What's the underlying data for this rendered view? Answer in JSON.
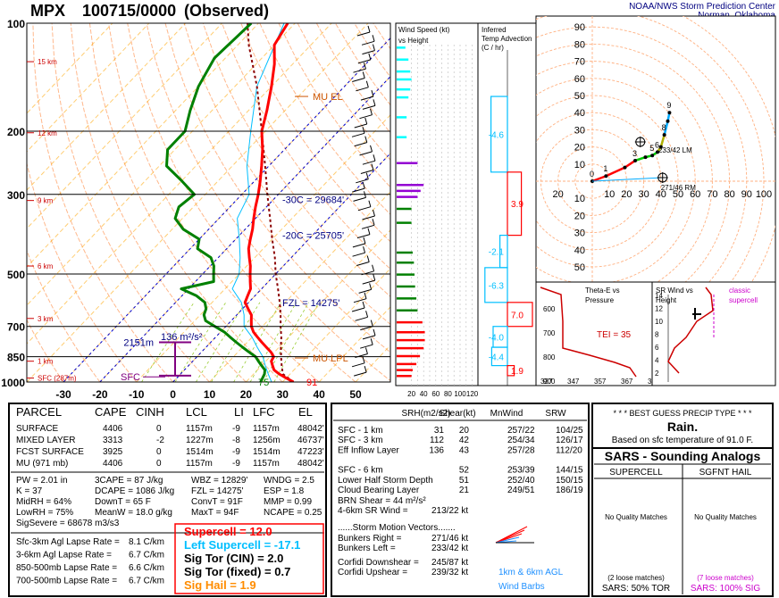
{
  "header": {
    "station": "MPX",
    "time": "100715/0000",
    "status": "(Observed)",
    "org_line1": "NOAA/NWS Storm Prediction Center",
    "org_line2": "Norman, Oklahoma"
  },
  "colors": {
    "temp": "#ff0000",
    "dewpoint": "#008000",
    "parcel": "#8b0000",
    "wetbulb": "#00bfff",
    "isotherm": "#ffa500",
    "mixratio": "#9acd32",
    "dryadiabat": "#ffb080",
    "navy": "#000080",
    "effective": "#800080",
    "cyan": "#00bfff",
    "hodo_axis": "#ffb080"
  },
  "chart_data": [
    {
      "type": "line",
      "title": "Skew-T",
      "pressure_labels": [
        "100",
        "200",
        "300",
        "500",
        "700",
        "850",
        "1000"
      ],
      "pressure_levels": [
        100,
        200,
        300,
        500,
        700,
        850,
        1000
      ],
      "temp_ticks": [
        "-30",
        "-20",
        "-10",
        "0",
        "10",
        "20",
        "30",
        "40",
        "50"
      ],
      "height_labels": [
        {
          "p": 128,
          "label": "15 km"
        },
        {
          "p": 202,
          "label": "12 km"
        },
        {
          "p": 312,
          "label": "9 km"
        },
        {
          "p": 475,
          "label": "6 km"
        },
        {
          "p": 665,
          "label": "3 km"
        },
        {
          "p": 875,
          "label": "1 km"
        },
        {
          "p": 975,
          "label": "SFC (287m)"
        }
      ],
      "annotations": {
        "mu_el": "MU EL",
        "mu_lpl": "MU LPL",
        "isotherm_m30": "-30C = 29684'",
        "isotherm_m20": "-20C = 25705'",
        "fzl": "FZL = 14275'",
        "effective_depth": "2151m",
        "effective_srh": "136 m²/s²",
        "sfc": "SFC",
        "sfc_temp": "91",
        "sfc_dewpoint": "75"
      },
      "series": [
        {
          "key": "temperature",
          "points": [
            [
              1000,
              33
            ],
            [
              975,
              30
            ],
            [
              950,
              27
            ],
            [
              925,
              24.5
            ],
            [
              900,
              23
            ],
            [
              875,
              21.5
            ],
            [
              850,
              21
            ],
            [
              825,
              19
            ],
            [
              800,
              16.5
            ],
            [
              775,
              14
            ],
            [
              750,
              11.5
            ],
            [
              725,
              9
            ],
            [
              700,
              7
            ],
            [
              675,
              5.5
            ],
            [
              650,
              4
            ],
            [
              625,
              1.5
            ],
            [
              600,
              -1
            ],
            [
              575,
              -2
            ],
            [
              550,
              -3
            ],
            [
              525,
              -5
            ],
            [
              500,
              -7
            ],
            [
              475,
              -9
            ],
            [
              450,
              -11.5
            ],
            [
              425,
              -14
            ],
            [
              400,
              -16
            ],
            [
              375,
              -18
            ],
            [
              350,
              -20.5
            ],
            [
              325,
              -23
            ],
            [
              300,
              -25.5
            ],
            [
              275,
              -28.5
            ],
            [
              250,
              -32
            ],
            [
              225,
              -36
            ],
            [
              200,
              -41
            ],
            [
              175,
              -45
            ],
            [
              150,
              -50
            ],
            [
              130,
              -55
            ],
            [
              115,
              -60
            ],
            [
              100,
              -62
            ]
          ]
        },
        {
          "key": "dewpoint",
          "points": [
            [
              1000,
              24
            ],
            [
              975,
              23.5
            ],
            [
              950,
              23
            ],
            [
              925,
              22
            ],
            [
              900,
              20
            ],
            [
              875,
              18
            ],
            [
              850,
              16
            ],
            [
              825,
              13
            ],
            [
              800,
              10
            ],
            [
              775,
              7
            ],
            [
              750,
              4
            ],
            [
              725,
              1
            ],
            [
              700,
              -3
            ],
            [
              675,
              -7
            ],
            [
              650,
              -9
            ],
            [
              625,
              -10
            ],
            [
              600,
              -12
            ],
            [
              575,
              -16
            ],
            [
              550,
              -22
            ],
            [
              525,
              -15
            ],
            [
              500,
              -17
            ],
            [
              475,
              -19
            ],
            [
              450,
              -22
            ],
            [
              425,
              -28
            ],
            [
              400,
              -30
            ],
            [
              375,
              -37
            ],
            [
              350,
              -42
            ],
            [
              325,
              -44
            ],
            [
              300,
              -43
            ],
            [
              275,
              -50
            ],
            [
              250,
              -58
            ],
            [
              225,
              -62
            ],
            [
              200,
              -62
            ],
            [
              175,
              -66
            ],
            [
              150,
              -70
            ],
            [
              125,
              -73
            ],
            [
              100,
              -72
            ]
          ]
        },
        {
          "key": "parcel",
          "points": [
            [
              1000,
              33
            ],
            [
              950,
              28
            ],
            [
              900,
              25.5
            ],
            [
              850,
              23
            ],
            [
              800,
              20.5
            ],
            [
              750,
              18
            ],
            [
              700,
              15
            ],
            [
              650,
              12
            ],
            [
              600,
              8.5
            ],
            [
              550,
              4.5
            ],
            [
              500,
              0
            ],
            [
              450,
              -4.5
            ],
            [
              400,
              -10
            ],
            [
              350,
              -16
            ],
            [
              300,
              -23
            ],
            [
              250,
              -31
            ],
            [
              200,
              -41
            ],
            [
              175,
              -47
            ],
            [
              150,
              -54
            ],
            [
              130,
              -61
            ],
            [
              115,
              -67
            ],
            [
              100,
              -73
            ]
          ]
        },
        {
          "key": "wetbulb",
          "points": [
            [
              1000,
              27
            ],
            [
              950,
              24
            ],
            [
              900,
              21
            ],
            [
              850,
              18
            ],
            [
              800,
              14
            ],
            [
              750,
              10
            ],
            [
              700,
              5
            ],
            [
              650,
              2
            ],
            [
              600,
              -2
            ],
            [
              550,
              -8
            ],
            [
              500,
              -10
            ],
            [
              450,
              -14
            ],
            [
              400,
              -19
            ],
            [
              350,
              -25
            ],
            [
              300,
              -28
            ],
            [
              250,
              -36
            ],
            [
              200,
              -44
            ],
            [
              150,
              -54
            ],
            [
              100,
              -63
            ]
          ]
        }
      ],
      "xlim": [
        -30,
        50
      ],
      "ylim": [
        1000,
        100
      ],
      "log_y": true
    },
    {
      "type": "bar",
      "title": "Wind Speed (kt)\nvs Height",
      "x_ticks": [
        "20",
        "40",
        "60",
        "80",
        "100",
        "120"
      ],
      "bars": [
        {
          "h": 0.3,
          "v": 20,
          "c": "red"
        },
        {
          "h": 0.6,
          "v": 22,
          "c": "red"
        },
        {
          "h": 0.9,
          "v": 28,
          "c": "red"
        },
        {
          "h": 1.3,
          "v": 34,
          "c": "red"
        },
        {
          "h": 1.7,
          "v": 40,
          "c": "red"
        },
        {
          "h": 2.1,
          "v": 42,
          "c": "red"
        },
        {
          "h": 2.5,
          "v": 42,
          "c": "red"
        },
        {
          "h": 3.0,
          "v": 38,
          "c": "red"
        },
        {
          "h": 3.6,
          "v": 30,
          "c": "green"
        },
        {
          "h": 4.2,
          "v": 28,
          "c": "green"
        },
        {
          "h": 4.8,
          "v": 26,
          "c": "green"
        },
        {
          "h": 5.4,
          "v": 25,
          "c": "green"
        },
        {
          "h": 6.0,
          "v": 24,
          "c": "green"
        },
        {
          "h": 6.5,
          "v": 22,
          "c": "green"
        },
        {
          "h": 8.0,
          "v": 20,
          "c": "green"
        },
        {
          "h": 8.7,
          "v": 20,
          "c": "green"
        },
        {
          "h": 9.3,
          "v": 30,
          "c": "#9400d3"
        },
        {
          "h": 9.6,
          "v": 35,
          "c": "#9400d3"
        },
        {
          "h": 9.9,
          "v": 40,
          "c": "#9400d3"
        },
        {
          "h": 11.0,
          "v": 30,
          "c": "#9400d3"
        },
        {
          "h": 12.3,
          "v": 12,
          "c": "cyan"
        },
        {
          "h": 13.3,
          "v": 12,
          "c": "cyan"
        },
        {
          "h": 14.3,
          "v": 15,
          "c": "cyan"
        },
        {
          "h": 14.7,
          "v": 18,
          "c": "cyan"
        },
        {
          "h": 15.2,
          "v": 20,
          "c": "cyan"
        },
        {
          "h": 15.6,
          "v": 18,
          "c": "cyan"
        },
        {
          "h": 16.2,
          "v": 15,
          "c": "cyan"
        },
        {
          "h": 16.8,
          "v": 10,
          "c": "cyan"
        }
      ]
    },
    {
      "type": "bar",
      "title": "Inferred\nTemp Advection\n(C / hr)",
      "values": [
        {
          "label": "-4.6",
          "val": -4.6,
          "p_top": 160,
          "p_bot": 260
        },
        {
          "label": "3.9",
          "val": 3.9,
          "p_top": 260,
          "p_bot": 390
        },
        {
          "label": "-2.1",
          "val": -2.1,
          "p_top": 390,
          "p_bot": 480
        },
        {
          "label": "-6.3",
          "val": -6.3,
          "p_top": 480,
          "p_bot": 600
        },
        {
          "label": "7.0",
          "val": 7.0,
          "p_top": 600,
          "p_bot": 700
        },
        {
          "label": "-4.0",
          "val": -4.0,
          "p_top": 700,
          "p_bot": 800
        },
        {
          "label": "-4.4",
          "val": -4.4,
          "p_top": 800,
          "p_bot": 900
        },
        {
          "label": "1.9",
          "val": 1.9,
          "p_top": 900,
          "p_bot": 960
        }
      ]
    },
    {
      "type": "line",
      "title": "Hodograph",
      "ring_labels": [
        "10",
        "20",
        "30",
        "40",
        "50",
        "60",
        "70",
        "80",
        "90"
      ],
      "axis_x_labels": [
        "20",
        "10",
        "20",
        "30",
        "40",
        "50",
        "60",
        "70",
        "80",
        "90",
        "100"
      ],
      "points": [
        [
          0,
          0
        ],
        [
          8,
          3
        ],
        [
          19,
          8
        ],
        [
          25,
          12
        ],
        [
          31,
          14
        ],
        [
          35,
          15
        ],
        [
          38,
          17
        ],
        [
          40,
          20
        ],
        [
          42,
          27
        ],
        [
          44,
          35
        ],
        [
          45,
          40
        ]
      ],
      "labels": [
        "0",
        "1",
        "3",
        "5",
        "6",
        "8",
        "9"
      ],
      "right_mover_label": "271/46 RM",
      "left_mover_label": "233/42 LM"
    }
  ],
  "inset_theta": {
    "title": "Theta-E vs\nPressure",
    "tei": "TEI = 35",
    "y_ticks": [
      "600",
      "700",
      "800",
      "900"
    ],
    "x_ticks": [
      "337",
      "347",
      "357",
      "367",
      "377"
    ]
  },
  "inset_srw": {
    "title": "SR Wind vs\nHeight",
    "classic": "classic\nsupercell",
    "y_ticks": [
      "14",
      "12",
      "10",
      "8",
      "6",
      "4",
      "2"
    ]
  },
  "parcel_table": {
    "headers": [
      "PARCEL",
      "CAPE",
      "CINH",
      "LCL",
      "LI",
      "LFC",
      "EL"
    ],
    "rows": [
      [
        "SURFACE",
        "4406",
        "0",
        "1157m",
        "-9",
        "1157m",
        "48042'"
      ],
      [
        "MIXED LAYER",
        "3313",
        "-2",
        "1227m",
        "-8",
        "1256m",
        "46737'"
      ],
      [
        "FCST SURFACE",
        "3925",
        "0",
        "1514m",
        "-9",
        "1514m",
        "47223'"
      ],
      [
        "MU  (971 mb)",
        "4406",
        "0",
        "1157m",
        "-9",
        "1157m",
        "48042'"
      ]
    ]
  },
  "thermo": {
    "col1": [
      "PW = 2.01 in",
      "K = 37",
      "MidRH = 64%",
      "LowRH = 75%",
      "SigSevere = 68678 m3/s3"
    ],
    "col2": [
      "3CAPE = 87 J/kg",
      "DCAPE = 1086 J/kg",
      "DownT = 65 F",
      "MeanW = 18.0 g/kg"
    ],
    "col3": [
      "WBZ = 12829'",
      "FZL = 14275'",
      "ConvT = 91F",
      "MaxT = 94F"
    ],
    "col4": [
      "WNDG = 2.5",
      "ESP = 1.8",
      "MMP = 0.99",
      "NCAPE = 0.25"
    ]
  },
  "lapse": [
    {
      "label": "Sfc-3km Agl Lapse Rate =",
      "value": "8.1 C/km"
    },
    {
      "label": "3-6km Agl Lapse Rate =",
      "value": "6.7 C/km"
    },
    {
      "label": "850-500mb Lapse Rate =",
      "value": "6.6 C/km"
    },
    {
      "label": "700-500mb Lapse Rate =",
      "value": "6.7 C/km"
    }
  ],
  "composite": [
    {
      "text": "Supercell = 12.0",
      "color": "#ff0000"
    },
    {
      "text": "Left Supercell = -17.1",
      "color": "#00bfff"
    },
    {
      "text": "Sig Tor (CIN) = 2.0",
      "color": "#000000"
    },
    {
      "text": "Sig Tor (fixed) = 0.7",
      "color": "#000000"
    },
    {
      "text": "Sig Hail = 1.9",
      "color": "#ff8c00"
    }
  ],
  "kinematic": {
    "headers": [
      "SRH(m2/s2)",
      "Shear(kt)",
      "MnWind",
      "SRW"
    ],
    "rows": [
      [
        "SFC - 1 km",
        "31",
        "20",
        "257/22",
        "104/25"
      ],
      [
        "SFC - 3 km",
        "112",
        "42",
        "254/34",
        "126/17"
      ],
      [
        "Eff Inflow Layer",
        "136",
        "43",
        "257/28",
        "112/20"
      ],
      [
        "SFC - 6 km",
        "",
        "52",
        "253/39",
        "144/15"
      ],
      [
        "Lower Half Storm Depth",
        "",
        "51",
        "252/40",
        "150/15"
      ],
      [
        "Cloud Bearing Layer",
        "",
        "21",
        "249/51",
        "186/19"
      ]
    ],
    "brn_shear": "BRN Shear =  44 m²/s²",
    "sr_wind_label": "4-6km SR Wind =",
    "sr_wind_value": "213/22 kt",
    "storm_motion_title": "......Storm Motion Vectors.......",
    "bunkers_right_label": "Bunkers Right =",
    "bunkers_right_value": "271/46 kt",
    "bunkers_left_label": "Bunkers Left =",
    "bunkers_left_value": "233/42 kt",
    "corfidi_down_label": "Corfidi Downshear =",
    "corfidi_down_value": "245/87 kt",
    "corfidi_up_label": "Corfidi Upshear =",
    "corfidi_up_value": "239/32 kt",
    "agl_label_1": "1km & 6km AGL",
    "agl_label_2": "Wind Barbs"
  },
  "precip": {
    "title": "* * * BEST GUESS PRECIP TYPE * * *",
    "value": "Rain.",
    "note": "Based on sfc temperature of 91.0 F."
  },
  "sars": {
    "title": "SARS - Sounding Analogs",
    "col1": "SUPERCELL",
    "col2": "SGFNT HAIL",
    "noq1": "No Quality Matches",
    "noq2": "No Quality Matches",
    "loose1": "(2 loose matches)",
    "loose2": "(7 loose matches)",
    "stat1": "SARS:  50% TOR",
    "stat2": "SARS: 100% SIG"
  }
}
